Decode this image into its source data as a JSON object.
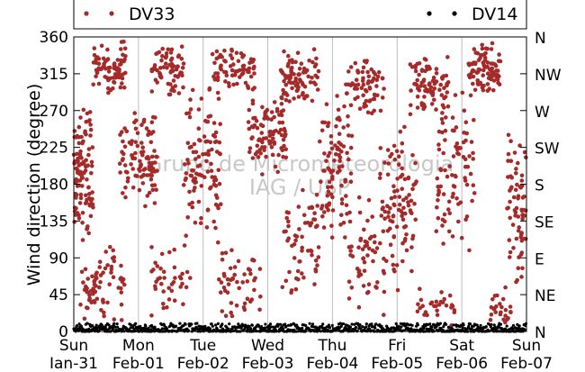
{
  "chart_data": {
    "type": "scatter",
    "ylabel": "Wind direction (degree)",
    "xlabel": "",
    "ylim": [
      0,
      360
    ],
    "y_ticks": [
      0,
      45,
      90,
      135,
      180,
      225,
      270,
      315,
      360
    ],
    "right_axis_ticks": [
      {
        "value": 0,
        "label": "N"
      },
      {
        "value": 45,
        "label": "NE"
      },
      {
        "value": 90,
        "label": "E"
      },
      {
        "value": 135,
        "label": "SE"
      },
      {
        "value": 180,
        "label": "S"
      },
      {
        "value": 225,
        "label": "SW"
      },
      {
        "value": 270,
        "label": "W"
      },
      {
        "value": 315,
        "label": "NW"
      },
      {
        "value": 360,
        "label": "N"
      }
    ],
    "xlim_days": [
      0,
      7
    ],
    "x_ticks": [
      {
        "day": 0,
        "line1": "Sun",
        "line2": "Jan-31"
      },
      {
        "day": 1,
        "line1": "Mon",
        "line2": "Feb-01"
      },
      {
        "day": 2,
        "line1": "Tue",
        "line2": "Feb-02"
      },
      {
        "day": 3,
        "line1": "Wed",
        "line2": "Feb-03"
      },
      {
        "day": 4,
        "line1": "Thu",
        "line2": "Feb-04"
      },
      {
        "day": 5,
        "line1": "Fri",
        "line2": "Feb-05"
      },
      {
        "day": 6,
        "line1": "Sat",
        "line2": "Feb-06"
      },
      {
        "day": 7,
        "line1": "Sun",
        "line2": "Feb-07"
      }
    ],
    "grid": "vertical",
    "legend_position": "top",
    "watermark": [
      "Grupo de Micrometeorologia",
      "IAG / USP"
    ],
    "series": [
      {
        "name": "DV33",
        "color": "#a52a2a",
        "marker": "circle",
        "clusters": [
          {
            "day_start": 0.0,
            "day_end": 0.3,
            "y_mean": 190,
            "y_spread": 95,
            "count": 110
          },
          {
            "day_start": 0.1,
            "day_end": 0.35,
            "y_mean": 45,
            "y_spread": 40,
            "count": 30
          },
          {
            "day_start": 0.3,
            "day_end": 0.8,
            "y_mean": 320,
            "y_spread": 35,
            "count": 75
          },
          {
            "day_start": 0.3,
            "day_end": 0.8,
            "y_mean": 60,
            "y_spread": 55,
            "count": 45
          },
          {
            "day_start": 0.7,
            "day_end": 1.3,
            "y_mean": 210,
            "y_spread": 60,
            "count": 100
          },
          {
            "day_start": 1.2,
            "day_end": 1.7,
            "y_mean": 320,
            "y_spread": 35,
            "count": 70
          },
          {
            "day_start": 1.2,
            "day_end": 1.8,
            "y_mean": 60,
            "y_spread": 55,
            "count": 40
          },
          {
            "day_start": 1.7,
            "day_end": 2.3,
            "y_mean": 200,
            "y_spread": 100,
            "count": 110
          },
          {
            "day_start": 2.1,
            "day_end": 2.8,
            "y_mean": 320,
            "y_spread": 35,
            "count": 75
          },
          {
            "day_start": 2.2,
            "day_end": 2.9,
            "y_mean": 60,
            "y_spread": 55,
            "count": 50
          },
          {
            "day_start": 2.7,
            "day_end": 3.3,
            "y_mean": 240,
            "y_spread": 60,
            "count": 90
          },
          {
            "day_start": 3.2,
            "day_end": 3.8,
            "y_mean": 310,
            "y_spread": 40,
            "count": 85
          },
          {
            "day_start": 3.2,
            "day_end": 3.8,
            "y_mean": 110,
            "y_spread": 90,
            "count": 60
          },
          {
            "day_start": 3.8,
            "day_end": 4.3,
            "y_mean": 200,
            "y_spread": 100,
            "count": 90
          },
          {
            "day_start": 4.2,
            "day_end": 4.8,
            "y_mean": 300,
            "y_spread": 40,
            "count": 70
          },
          {
            "day_start": 4.2,
            "day_end": 4.8,
            "y_mean": 90,
            "y_spread": 80,
            "count": 55
          },
          {
            "day_start": 4.7,
            "day_end": 5.3,
            "y_mean": 150,
            "y_spread": 110,
            "count": 100
          },
          {
            "day_start": 5.2,
            "day_end": 5.8,
            "y_mean": 300,
            "y_spread": 40,
            "count": 80
          },
          {
            "day_start": 5.3,
            "day_end": 5.9,
            "y_mean": 30,
            "y_spread": 30,
            "count": 30
          },
          {
            "day_start": 5.6,
            "day_end": 6.2,
            "y_mean": 200,
            "y_spread": 120,
            "count": 90
          },
          {
            "day_start": 6.1,
            "day_end": 6.6,
            "y_mean": 320,
            "y_spread": 35,
            "count": 90
          },
          {
            "day_start": 6.4,
            "day_end": 6.8,
            "y_mean": 30,
            "y_spread": 28,
            "count": 25
          },
          {
            "day_start": 6.7,
            "day_end": 7.0,
            "y_mean": 150,
            "y_spread": 110,
            "count": 70
          }
        ]
      },
      {
        "name": "DV14",
        "color": "#000000",
        "marker": "circle",
        "baseline": {
          "day_start": 0.0,
          "day_end": 7.0,
          "y_min": 0,
          "y_max": 10,
          "count": 900
        }
      }
    ]
  }
}
